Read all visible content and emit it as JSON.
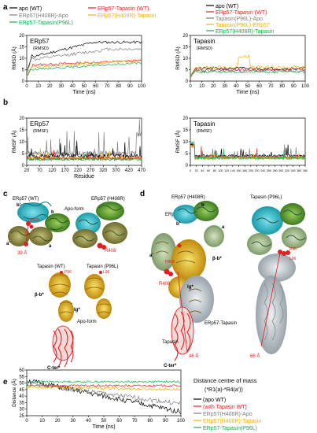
{
  "panels": {
    "a": {
      "label": "a"
    },
    "b": {
      "label": "b"
    },
    "c": {
      "label": "c"
    },
    "d": {
      "label": "d"
    },
    "e": {
      "label": "e"
    }
  },
  "legend_a_left": [
    {
      "text": "apo (WT)",
      "color": "#000000"
    },
    {
      "text": "ERp57(H408R)-Apo",
      "color": "#7f7f7f"
    },
    {
      "text": "ERp57-Tapasin(P96L)",
      "color": "#10b050"
    }
  ],
  "legend_a_mid": [
    {
      "text": "ERp57-Tapasin (WT)",
      "color": "#ee1c1c"
    },
    {
      "text": "ERp57(H408R)-Tapasin",
      "color": "#f2b100"
    }
  ],
  "legend_a_right": [
    {
      "text": "apo (WT)",
      "color": "#000000"
    },
    {
      "text": "ERp57-Tapasin (WT)",
      "color": "#ee1c1c"
    },
    {
      "text": "Tapasin(P96L)-Apo",
      "color": "#7f7f7f"
    },
    {
      "text": "Tapasin(P96L)-ERp57",
      "color": "#f2b100"
    },
    {
      "text": "ERp57(H408R)-Tapasin",
      "color": "#10b050"
    }
  ],
  "plots": {
    "a_left": {
      "title": "ERp57",
      "subtitle": "(RMSD)",
      "ylabel": "RMSD (Å)",
      "xlabel": "Time (ns)",
      "yticks": [
        "0",
        "5",
        "10",
        "15",
        "20"
      ],
      "xticks": [
        "0",
        "10",
        "20",
        "30",
        "40",
        "50",
        "60",
        "70",
        "80",
        "90",
        "100"
      ]
    },
    "a_right": {
      "title": "Tapasin",
      "subtitle": "(RMSD)",
      "ylabel": "RMSD (Å)",
      "xlabel": "Time (ns)",
      "yticks": [
        "0",
        "5",
        "10",
        "15",
        "20"
      ],
      "xticks": [
        "0",
        "10",
        "20",
        "30",
        "40",
        "50",
        "60",
        "70",
        "80",
        "90",
        "100"
      ]
    },
    "b_left": {
      "title": "ERp57",
      "subtitle": "(RMSF)",
      "ylabel": "RMSF (Å)",
      "xlabel": "Residue",
      "yticks": [
        "0",
        "5",
        "10",
        "15",
        "20"
      ],
      "xticks": [
        "20",
        "70",
        "120",
        "170",
        "220",
        "270",
        "320",
        "370",
        "420",
        "470"
      ]
    },
    "b_right": {
      "title": "Tapasin",
      "subtitle": "(RMSF)",
      "ylabel": "RMSF (Å)",
      "yticks": [
        "0",
        "5",
        "10",
        "15",
        "20"
      ],
      "xticks": [
        "0",
        "20",
        "40",
        "60",
        "80",
        "100",
        "120",
        "140",
        "160",
        "180",
        "200",
        "220",
        "240",
        "260",
        "280",
        "300",
        "320",
        "340",
        "360",
        "380"
      ]
    },
    "e": {
      "ylabel": "Distance (Å)",
      "xlabel": "Time (ns)",
      "yticks": [
        "25",
        "30",
        "35",
        "40",
        "45",
        "50",
        "55",
        "60"
      ],
      "xticks": [
        "0",
        "10",
        "20",
        "30",
        "40",
        "50",
        "60",
        "70",
        "80",
        "90",
        "100"
      ]
    }
  },
  "legend_e": {
    "title1": "Distance centre of mass",
    "title2": "(*R1(a)-*R4(a'))",
    "items": [
      {
        "text": "(apo WT)",
        "color": "#000000"
      },
      {
        "text": "(with Tapasin WT)",
        "color": "#ee1c1c"
      },
      {
        "text": "ERp57(H408R)-Apo",
        "color": "#7f7f7f"
      },
      {
        "text": "ERp57(H408R)-Tapasin",
        "color": "#f2b100"
      },
      {
        "text": "ERp57-Tapasin(P96L)",
        "color": "#10b050"
      }
    ]
  },
  "struct_c": {
    "erp57_wt": "ERp57 (WT)",
    "erp57_h408r": "ERp57 (H408R)",
    "apo_form": "Apo-form",
    "b_prime": "b'",
    "b": "b",
    "a_prime": "a'",
    "a": "a",
    "r408": "R408",
    "h408": "H408",
    "dist": "39 Å",
    "tapasin_wt": "Tapasin (WT)",
    "tapasin_p96l": "Tapasin (P96L)",
    "p96": "P96",
    "l96": "L96",
    "b_b_star": "β-b*",
    "ig_star": "Ig*",
    "apo_form2": "Apo-form",
    "c_ter": "C-ter*"
  },
  "struct_d": {
    "erp57_h408r": "ERp57 (H408R)",
    "tapasin_p96l": "Tapasin (P96L)",
    "erp57": "ERp57",
    "b_prime": "b'",
    "b": "b",
    "a": "a",
    "a_prime": "a'",
    "r408": "R408",
    "h408": "H408",
    "b_b_star": "β-b*",
    "ig_star": "Ig*",
    "erp57_tapasin": "ERp57-Tapasin",
    "tapasin": "Tapasin",
    "c_ter": "C-ter*",
    "dist1": "46 Å",
    "dist2": "68 Å",
    "p96": "P96",
    "l96": "L96"
  }
}
